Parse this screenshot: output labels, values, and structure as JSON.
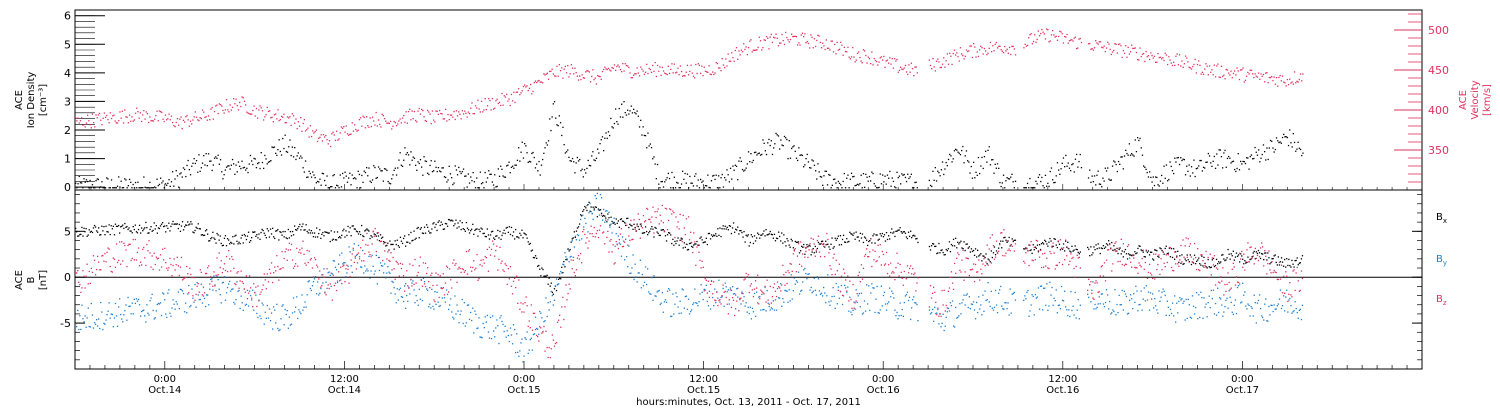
{
  "chart_data": [
    {
      "type": "scatter",
      "title": "",
      "ylabel_lines": [
        "ACE",
        "Ion Density",
        "[cm⁻³]"
      ],
      "y2label_lines": [
        "ACE",
        "Velocity",
        "[km/s]"
      ],
      "xlim": [
        -6,
        84
      ],
      "ylim": [
        -0.1,
        6.2
      ],
      "y2lim": [
        300,
        525
      ],
      "yticks": [
        0,
        1,
        2,
        3,
        4,
        5,
        6
      ],
      "ytick_labels": [
        "0",
        "1",
        "2",
        "3",
        "4",
        "5",
        "6"
      ],
      "y2ticks": [
        350,
        400,
        450,
        500
      ],
      "y2tick_labels": [
        "350",
        "400",
        "450",
        "500"
      ],
      "colors": {
        "axis": "#000000",
        "density": "#000000",
        "velocity": "#e0305f"
      },
      "series": [
        {
          "key": "density",
          "axis": "left",
          "gaps": [
            [
              50.3,
              51.0
            ],
            [
              56.8,
              57.3
            ],
            [
              61.2,
              61.6
            ]
          ],
          "x": [
            -6,
            -4,
            -2,
            0,
            1,
            2,
            3,
            4,
            5,
            6,
            7,
            8,
            9,
            10,
            11,
            12,
            13,
            14,
            15,
            16,
            17,
            18,
            19,
            20,
            21,
            22,
            23,
            24,
            25,
            26,
            27,
            28,
            29,
            30,
            31,
            32,
            33,
            34,
            35,
            36,
            37,
            38,
            39,
            40,
            41,
            42,
            43,
            44,
            45,
            46,
            47,
            48,
            49,
            50,
            51,
            52,
            53,
            54,
            55,
            56,
            57,
            58,
            59,
            60,
            61,
            62,
            63,
            64,
            65,
            66,
            67,
            68,
            69,
            70,
            71,
            72,
            73,
            74,
            75,
            76
          ],
          "y": [
            0.05,
            0.05,
            0.05,
            0.1,
            0.4,
            0.8,
            1.0,
            0.6,
            0.8,
            0.8,
            1.2,
            1.5,
            1.0,
            0.3,
            0.1,
            0.2,
            0.3,
            0.5,
            0.4,
            1.2,
            0.8,
            0.6,
            0.5,
            0.3,
            0.2,
            0.3,
            0.8,
            1.4,
            0.7,
            2.8,
            1.0,
            0.6,
            1.2,
            2.5,
            2.8,
            2.0,
            0.3,
            0.3,
            0.2,
            0.2,
            0.2,
            0.5,
            1.0,
            1.4,
            1.6,
            1.2,
            0.8,
            0.3,
            0.2,
            0.2,
            0.2,
            0.3,
            0.2,
            0.2,
            0.2,
            0.8,
            1.4,
            0.6,
            1.2,
            0.2,
            0.2,
            0.15,
            0.3,
            0.8,
            0.9,
            0.3,
            0.4,
            1.0,
            1.6,
            0.2,
            0.6,
            0.8,
            0.6,
            1.0,
            1.0,
            0.8,
            1.2,
            1.4,
            1.8,
            1.2
          ]
        },
        {
          "key": "velocity",
          "axis": "right",
          "gaps": [
            [
              50.3,
              51.0
            ],
            [
              56.8,
              57.3
            ],
            [
              61.2,
              61.6
            ]
          ],
          "x": [
            -6,
            -4,
            -2,
            0,
            1,
            2,
            3,
            4,
            5,
            6,
            7,
            8,
            9,
            10,
            11,
            12,
            13,
            14,
            15,
            16,
            17,
            18,
            19,
            20,
            21,
            22,
            23,
            24,
            25,
            26,
            27,
            28,
            29,
            30,
            31,
            32,
            33,
            34,
            35,
            36,
            37,
            38,
            39,
            40,
            41,
            42,
            43,
            44,
            45,
            46,
            47,
            48,
            49,
            50,
            51,
            52,
            53,
            54,
            55,
            56,
            57,
            58,
            59,
            60,
            61,
            62,
            63,
            64,
            65,
            66,
            67,
            68,
            69,
            70,
            71,
            72,
            73,
            74,
            75,
            76
          ],
          "y": [
            385,
            390,
            395,
            390,
            385,
            390,
            395,
            405,
            410,
            400,
            395,
            392,
            385,
            368,
            363,
            375,
            385,
            390,
            385,
            392,
            395,
            390,
            395,
            398,
            405,
            410,
            415,
            425,
            435,
            448,
            450,
            445,
            440,
            455,
            450,
            450,
            452,
            450,
            450,
            450,
            455,
            470,
            480,
            485,
            488,
            490,
            487,
            485,
            478,
            470,
            468,
            460,
            455,
            450,
            455,
            462,
            470,
            475,
            478,
            480,
            478,
            490,
            495,
            490,
            485,
            482,
            478,
            475,
            472,
            468,
            465,
            460,
            455,
            450,
            448,
            445,
            442,
            440,
            438,
            445
          ]
        }
      ]
    },
    {
      "type": "scatter",
      "title": "",
      "ylabel_lines": [
        "ACE",
        "B",
        "[nT]"
      ],
      "xlim": [
        -6,
        84
      ],
      "ylim": [
        -10,
        9.5
      ],
      "yticks": [
        -5,
        0,
        5
      ],
      "ytick_labels": [
        "-5",
        "0",
        "5"
      ],
      "zero_line": 0,
      "xlabel": "hours:minutes, Oct. 13, 2011 - Oct. 17, 2011",
      "xticks": [
        0,
        12,
        24,
        36,
        48,
        60,
        72
      ],
      "xtick_labels": [
        [
          "0:00",
          "Oct.14"
        ],
        [
          "12:00",
          "Oct.14"
        ],
        [
          "0:00",
          "Oct.15"
        ],
        [
          "12:00",
          "Oct.15"
        ],
        [
          "0:00",
          "Oct.16"
        ],
        [
          "12:00",
          "Oct.16"
        ],
        [
          "0:00",
          "Oct.17"
        ]
      ],
      "legend": [
        {
          "key": "bx",
          "base": "B",
          "sub": "x",
          "color": "#000000"
        },
        {
          "key": "by",
          "base": "B",
          "sub": "y",
          "color": "#1a7fd4"
        },
        {
          "key": "bz",
          "base": "B",
          "sub": "z",
          "color": "#e0305f"
        }
      ],
      "legend_position": "right",
      "series": [
        {
          "key": "bx",
          "color": "#000000",
          "gaps": [
            [
              50.3,
              51.0
            ],
            [
              56.8,
              57.3
            ],
            [
              61.2,
              61.6
            ]
          ],
          "x": [
            -6,
            -4,
            -2,
            0,
            1,
            2,
            3,
            4,
            5,
            6,
            7,
            8,
            9,
            10,
            11,
            12,
            13,
            14,
            15,
            16,
            17,
            18,
            19,
            20,
            21,
            22,
            23,
            24,
            25,
            26,
            27,
            28,
            29,
            30,
            31,
            32,
            33,
            34,
            35,
            36,
            37,
            38,
            39,
            40,
            41,
            42,
            43,
            44,
            45,
            46,
            47,
            48,
            49,
            50,
            51,
            52,
            53,
            54,
            55,
            56,
            57,
            58,
            59,
            60,
            61,
            62,
            63,
            64,
            65,
            66,
            67,
            68,
            69,
            70,
            71,
            72,
            73,
            74,
            75,
            76
          ],
          "y": [
            5.0,
            5.2,
            5.4,
            5.5,
            5.6,
            5.5,
            4.5,
            4.0,
            4.2,
            4.5,
            5.0,
            4.5,
            5.5,
            5.0,
            4.5,
            5.0,
            5.2,
            4.5,
            3.5,
            4.0,
            5.0,
            5.5,
            6.0,
            5.5,
            5.0,
            4.5,
            5.0,
            4.5,
            1.0,
            -1.5,
            3.0,
            8.0,
            7.0,
            6.0,
            6.0,
            5.0,
            5.0,
            4.0,
            3.5,
            4.0,
            5.0,
            5.5,
            4.0,
            5.0,
            4.5,
            3.5,
            3.0,
            3.5,
            4.0,
            4.5,
            4.0,
            4.5,
            5.0,
            4.5,
            3.5,
            3.0,
            4.0,
            3.0,
            2.0,
            4.0,
            3.5,
            3.0,
            4.0,
            3.5,
            3.0,
            3.0,
            3.5,
            2.5,
            3.0,
            2.5,
            3.0,
            2.0,
            2.0,
            1.5,
            2.5,
            2.0,
            2.5,
            2.0,
            1.5,
            2.0
          ]
        },
        {
          "key": "by",
          "color": "#1a7fd4",
          "gaps": [
            [
              50.3,
              51.0
            ],
            [
              56.8,
              57.3
            ],
            [
              61.2,
              61.6
            ]
          ],
          "x": [
            -6,
            -4,
            -2,
            0,
            1,
            2,
            3,
            4,
            5,
            6,
            7,
            8,
            9,
            10,
            11,
            12,
            13,
            14,
            15,
            16,
            17,
            18,
            19,
            20,
            21,
            22,
            23,
            24,
            25,
            26,
            27,
            28,
            29,
            30,
            31,
            32,
            33,
            34,
            35,
            36,
            37,
            38,
            39,
            40,
            41,
            42,
            43,
            44,
            45,
            46,
            47,
            48,
            49,
            50,
            51,
            52,
            53,
            54,
            55,
            56,
            57,
            58,
            59,
            60,
            61,
            62,
            63,
            64,
            65,
            66,
            67,
            68,
            69,
            70,
            71,
            72,
            73,
            74,
            75,
            76
          ],
          "y": [
            -4.5,
            -4.0,
            -3.5,
            -3.0,
            -2.5,
            -2.0,
            -1.5,
            -1.0,
            -2.0,
            -3.0,
            -4.0,
            -4.5,
            -3.0,
            -1.0,
            0.0,
            1.5,
            2.5,
            1.0,
            -0.5,
            -2.0,
            -1.5,
            -2.0,
            -3.0,
            -4.0,
            -5.0,
            -5.5,
            -6.0,
            -8.0,
            -5.0,
            -2.0,
            3.0,
            6.0,
            8.0,
            5.0,
            2.0,
            0.0,
            -2.0,
            -3.0,
            -2.5,
            -2.0,
            -1.5,
            -2.0,
            -3.0,
            -2.5,
            -2.0,
            -1.0,
            0.0,
            -1.0,
            -2.0,
            -3.0,
            -2.0,
            -2.5,
            -3.0,
            -3.0,
            -4.0,
            -4.5,
            -3.5,
            -3.0,
            -2.0,
            -2.5,
            -3.0,
            -2.5,
            -2.0,
            -2.5,
            -3.0,
            -2.0,
            -2.5,
            -3.0,
            -2.0,
            -2.5,
            -3.0,
            -3.5,
            -3.0,
            -2.5,
            -3.0,
            -2.0,
            -3.5,
            -3.0,
            -2.5,
            -3.0
          ]
        },
        {
          "key": "bz",
          "color": "#e0305f",
          "gaps": [
            [
              50.3,
              51.0
            ],
            [
              56.8,
              57.3
            ],
            [
              61.2,
              61.6
            ]
          ],
          "x": [
            -6,
            -4,
            -2,
            0,
            1,
            2,
            3,
            4,
            5,
            6,
            7,
            8,
            9,
            10,
            11,
            12,
            13,
            14,
            15,
            16,
            17,
            18,
            19,
            20,
            21,
            22,
            23,
            24,
            25,
            26,
            27,
            28,
            29,
            30,
            31,
            32,
            33,
            34,
            35,
            36,
            37,
            38,
            39,
            40,
            41,
            42,
            43,
            44,
            45,
            46,
            47,
            48,
            49,
            50,
            51,
            52,
            53,
            54,
            55,
            56,
            57,
            58,
            59,
            60,
            61,
            62,
            63,
            64,
            65,
            66,
            67,
            68,
            69,
            70,
            71,
            72,
            73,
            74,
            75,
            76
          ],
          "y": [
            -0.5,
            2.0,
            3.0,
            2.0,
            1.0,
            -1.0,
            0.0,
            2.0,
            0.0,
            -2.0,
            0.0,
            2.0,
            3.0,
            1.0,
            -1.0,
            0.0,
            3.0,
            4.0,
            2.0,
            0.0,
            1.0,
            -1.0,
            0.0,
            2.0,
            1.0,
            3.0,
            0.0,
            -3.0,
            -6.0,
            -8.0,
            0.0,
            4.0,
            6.0,
            3.0,
            5.0,
            6.0,
            6.5,
            6.0,
            5.0,
            0.0,
            -2.0,
            -3.0,
            0.0,
            -2.0,
            -1.0,
            2.0,
            3.0,
            4.0,
            0.0,
            -2.0,
            3.0,
            2.0,
            1.0,
            0.0,
            -2.0,
            -3.0,
            2.0,
            0.0,
            3.0,
            4.0,
            2.0,
            3.0,
            2.0,
            3.0,
            1.0,
            -2.0,
            2.0,
            3.0,
            2.0,
            1.0,
            2.0,
            3.0,
            2.0,
            1.0,
            -1.0,
            2.0,
            3.0,
            1.0,
            -1.0,
            0.0
          ]
        }
      ]
    }
  ]
}
